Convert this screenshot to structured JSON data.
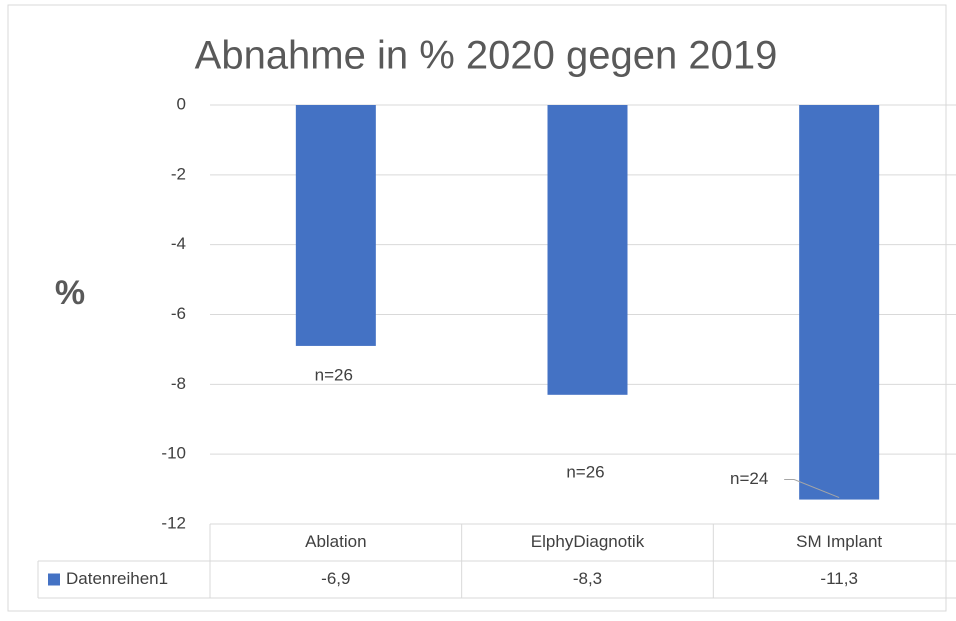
{
  "chart_data": {
    "type": "bar",
    "title": "Abnahme in % 2020 gegen 2019",
    "y_label": "%",
    "categories": [
      "Ablation",
      "ElphyDiagnotik",
      "SM Implant"
    ],
    "series": [
      {
        "name": "Datenreihen1",
        "color": "#4472c4",
        "values": [
          -6.9,
          -8.3,
          -11.3
        ],
        "value_labels": [
          "-6,9",
          "-8,3",
          "-11,3"
        ]
      }
    ],
    "annotations": [
      "n=26",
      "n=26",
      "n=24"
    ],
    "ylim": [
      -12,
      0
    ],
    "yticks": [
      0,
      -2,
      -4,
      -6,
      -8,
      -10,
      -12
    ],
    "grid": true
  }
}
